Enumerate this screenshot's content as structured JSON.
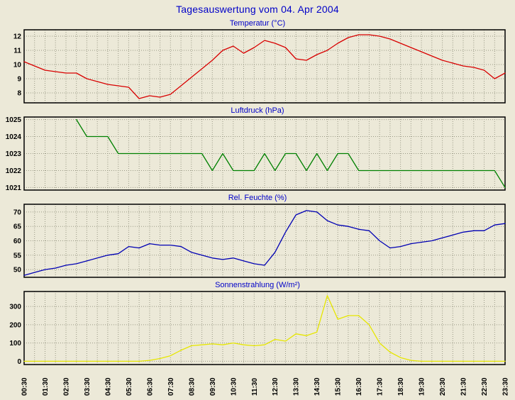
{
  "title": "Tagesauswertung vom 04. Apr 2004",
  "colors": {
    "background": "#ece9d8",
    "heading": "#0000c8",
    "grid": "#999985",
    "plot_border": "#000000",
    "tick_text": "#000000"
  },
  "x_axis": {
    "labels": [
      "00:30",
      "01:30",
      "02:30",
      "03:30",
      "04:30",
      "05:30",
      "06:30",
      "07:30",
      "08:30",
      "09:30",
      "10:30",
      "11:30",
      "12:30",
      "13:30",
      "14:30",
      "15:30",
      "16:30",
      "17:30",
      "18:30",
      "19:30",
      "20:30",
      "21:30",
      "22:30",
      "23:30"
    ],
    "rotation": "vertical"
  },
  "chart_data": [
    {
      "type": "line",
      "title": "Temperatur (°C)",
      "color": "#d80000",
      "x_start": "00:30",
      "x_interval_minutes": 30,
      "yticks": [
        8,
        9,
        10,
        11,
        12
      ],
      "ylim": [
        7.3,
        12.45
      ],
      "grid": "dotted",
      "legend": "none",
      "values": [
        10.2,
        9.9,
        9.6,
        9.5,
        9.4,
        9.4,
        9.0,
        8.8,
        8.6,
        8.5,
        8.4,
        7.6,
        7.8,
        7.7,
        7.9,
        8.5,
        9.1,
        9.7,
        10.3,
        11.0,
        11.3,
        10.8,
        11.2,
        11.7,
        11.5,
        11.2,
        10.4,
        10.3,
        10.7,
        11.0,
        11.5,
        11.9,
        12.1,
        12.1,
        12.0,
        11.8,
        11.5,
        11.2,
        10.9,
        10.6,
        10.3,
        10.1,
        9.9,
        9.8,
        9.6,
        9.0,
        9.4
      ]
    },
    {
      "type": "line",
      "title": "Luftdruck (hPa)",
      "color": "#008000",
      "x_start": "00:30",
      "x_interval_minutes": 30,
      "yticks": [
        1021,
        1022,
        1023,
        1024,
        1025
      ],
      "ylim": [
        1020.85,
        1025.15
      ],
      "grid": "dotted",
      "legend": "none",
      "values": [
        null,
        null,
        null,
        null,
        null,
        1025,
        1024,
        1024,
        1024,
        1023,
        1023,
        1023,
        1023,
        1023,
        1023,
        1023,
        1023,
        1023,
        1022,
        1023,
        1022,
        1022,
        1022,
        1023,
        1022,
        1023,
        1023,
        1022,
        1023,
        1022,
        1023,
        1023,
        1022,
        1022,
        1022,
        1022,
        1022,
        1022,
        1022,
        1022,
        1022,
        1022,
        1022,
        1022,
        1022,
        1022,
        1021
      ]
    },
    {
      "type": "line",
      "title": "Rel. Feuchte (%)",
      "color": "#0000b4",
      "x_start": "00:30",
      "x_interval_minutes": 30,
      "yticks": [
        50,
        55,
        60,
        65,
        70
      ],
      "ylim": [
        47.3,
        72.7
      ],
      "grid": "dotted",
      "legend": "none",
      "values": [
        48,
        49,
        50,
        50.5,
        51.5,
        52,
        53,
        54,
        55,
        55.5,
        58,
        57.5,
        59,
        58.5,
        58.5,
        58,
        56,
        55,
        54,
        53.5,
        54,
        53,
        52,
        51.5,
        56,
        63,
        69,
        70.5,
        70,
        67,
        65.5,
        65,
        64,
        63.5,
        60,
        57.5,
        58,
        59,
        59.5,
        60,
        61,
        62,
        63,
        63.5,
        63.5,
        65.5,
        66
      ]
    },
    {
      "type": "line",
      "title": "Sonnenstrahlung (W/m²)",
      "color": "#e6e600",
      "x_start": "00:30",
      "x_interval_minutes": 30,
      "yticks": [
        0,
        100,
        200,
        300
      ],
      "ylim": [
        -18,
        382
      ],
      "grid": "dotted",
      "legend": "none",
      "values": [
        0,
        0,
        0,
        0,
        0,
        0,
        0,
        0,
        0,
        0,
        0,
        0,
        5,
        15,
        30,
        60,
        85,
        90,
        95,
        90,
        100,
        90,
        85,
        90,
        120,
        110,
        150,
        140,
        160,
        360,
        230,
        250,
        250,
        200,
        100,
        50,
        20,
        5,
        0,
        0,
        0,
        0,
        0,
        0,
        0,
        0,
        0
      ]
    }
  ]
}
